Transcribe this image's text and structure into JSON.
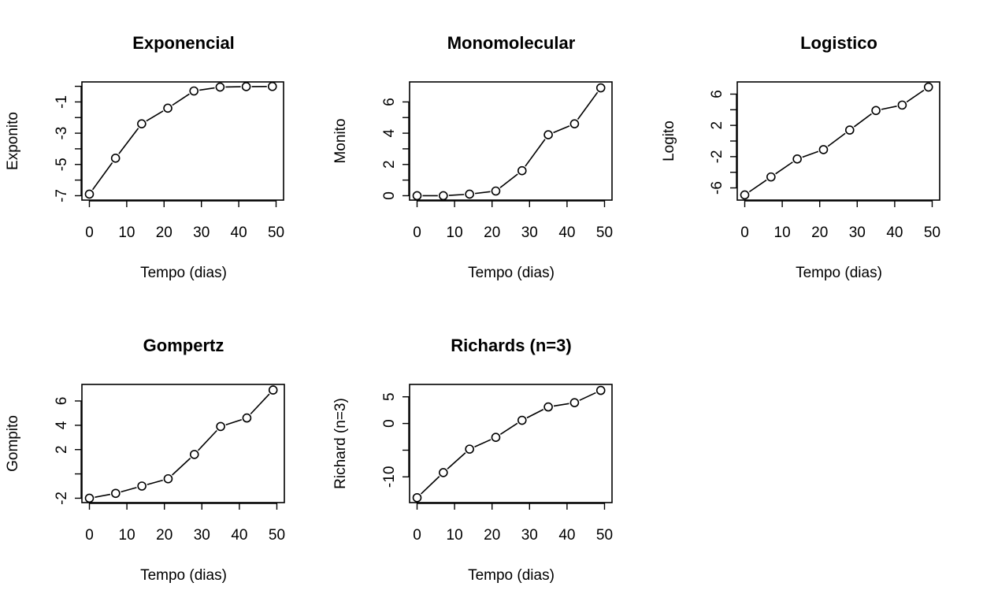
{
  "chart_data": [
    {
      "type": "line",
      "title": "Exponencial",
      "xlabel": "Tempo (dias)",
      "ylabel": "Exponito",
      "x": [
        0,
        7,
        14,
        21,
        28,
        35,
        42,
        49
      ],
      "y": [
        -6.9,
        -4.6,
        -2.4,
        -1.4,
        -0.3,
        -0.05,
        -0.02,
        -0.01
      ],
      "xlim": [
        0,
        50
      ],
      "ylim": [
        -7,
        0
      ],
      "xticks": [
        0,
        10,
        20,
        30,
        40,
        50
      ],
      "yticks": [
        -7,
        -6,
        -5,
        -4,
        -3,
        -2,
        -1,
        0
      ],
      "ytick_labels": [
        "-7",
        "",
        "-5",
        "",
        "-3",
        "",
        "-1",
        ""
      ],
      "markers": "open-circle",
      "grid": false
    },
    {
      "type": "line",
      "title": "Monomolecular",
      "xlabel": "Tempo (dias)",
      "ylabel": "Monito",
      "x": [
        0,
        7,
        14,
        21,
        28,
        35,
        42,
        49
      ],
      "y": [
        0.0,
        0.0,
        0.1,
        0.3,
        1.6,
        3.9,
        4.6,
        6.9
      ],
      "xlim": [
        0,
        50
      ],
      "ylim": [
        0,
        7
      ],
      "xticks": [
        0,
        10,
        20,
        30,
        40,
        50
      ],
      "yticks": [
        0,
        1,
        2,
        3,
        4,
        5,
        6
      ],
      "ytick_labels": [
        "0",
        "",
        "2",
        "",
        "4",
        "",
        "6"
      ],
      "markers": "open-circle",
      "grid": false
    },
    {
      "type": "line",
      "title": "Logistico",
      "xlabel": "Tempo (dias)",
      "ylabel": "Logito",
      "x": [
        0,
        7,
        14,
        21,
        28,
        35,
        42,
        49
      ],
      "y": [
        -6.9,
        -4.6,
        -2.3,
        -1.1,
        1.4,
        3.9,
        4.6,
        6.9
      ],
      "xlim": [
        0,
        50
      ],
      "ylim": [
        -7,
        7
      ],
      "xticks": [
        0,
        10,
        20,
        30,
        40,
        50
      ],
      "yticks": [
        -6,
        -4,
        -2,
        0,
        2,
        4,
        6
      ],
      "ytick_labels": [
        "-6",
        "",
        "-2",
        "",
        "2",
        "",
        "6"
      ],
      "markers": "open-circle",
      "grid": false
    },
    {
      "type": "line",
      "title": "Gompertz",
      "xlabel": "Tempo (dias)",
      "ylabel": "Gompito",
      "x": [
        0,
        7,
        14,
        21,
        28,
        35,
        42,
        49
      ],
      "y": [
        -2.0,
        -1.6,
        -1.0,
        -0.4,
        1.6,
        3.9,
        4.6,
        6.9
      ],
      "xlim": [
        0,
        50
      ],
      "ylim": [
        -2,
        7
      ],
      "xticks": [
        0,
        10,
        20,
        30,
        40,
        50
      ],
      "yticks": [
        -2,
        0,
        2,
        4,
        6
      ],
      "ytick_labels": [
        "-2",
        "",
        "2",
        "4",
        "6"
      ],
      "markers": "open-circle",
      "grid": false
    },
    {
      "type": "line",
      "title": "Richards (n=3)",
      "xlabel": "Tempo (dias)",
      "ylabel": "Richard (n=3)",
      "x": [
        0,
        7,
        14,
        21,
        28,
        35,
        42,
        49
      ],
      "y": [
        -13.9,
        -9.2,
        -4.8,
        -2.6,
        0.6,
        3.1,
        3.9,
        6.2
      ],
      "xlim": [
        0,
        50
      ],
      "ylim": [
        -14,
        6.5
      ],
      "xticks": [
        0,
        10,
        20,
        30,
        40,
        50
      ],
      "yticks": [
        -10,
        -5,
        0,
        5
      ],
      "ytick_labels": [
        "-10",
        "",
        "0",
        "5"
      ],
      "markers": "open-circle",
      "grid": false
    }
  ]
}
